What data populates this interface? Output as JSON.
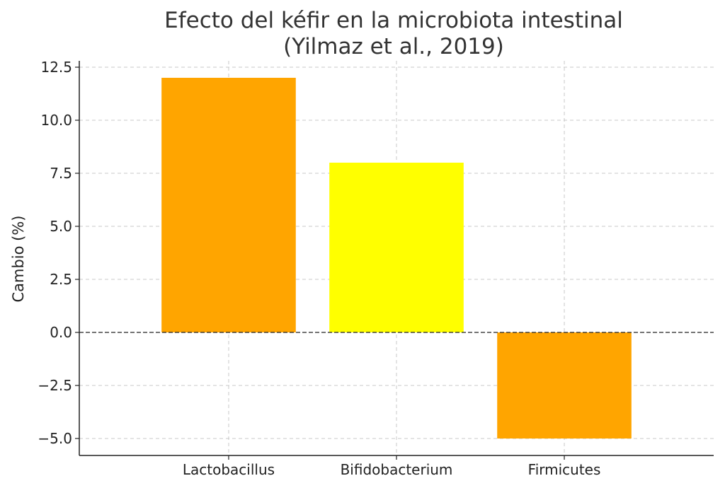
{
  "chart_data": {
    "type": "bar",
    "title_lines": [
      "Efecto del kéfir en la microbiota intestinal",
      "(Yilmaz et al., 2019)"
    ],
    "xlabel": "",
    "ylabel": "Cambio (%)",
    "categories": [
      "Lactobacillus",
      "Bifidobacterium",
      "Firmicutes"
    ],
    "values": [
      12,
      8,
      -5
    ],
    "colors": [
      "#ffa500",
      "#ffff00",
      "#ffa500"
    ],
    "ylim": [
      -5.8,
      12.8
    ],
    "yticks": [
      -5.0,
      -2.5,
      0.0,
      2.5,
      5.0,
      7.5,
      10.0,
      12.5
    ],
    "ytick_labels": [
      "−5.0",
      "−2.5",
      "0.0",
      "2.5",
      "5.0",
      "7.5",
      "10.0",
      "12.5"
    ],
    "grid": true,
    "zero_line": true
  }
}
